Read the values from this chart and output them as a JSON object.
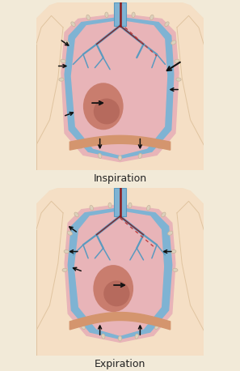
{
  "title_top": "Inspiration",
  "title_bottom": "Expiration",
  "skin_color": "#f5dfc5",
  "skin_dark": "#e0c4a0",
  "lung_pink": "#e8b4b8",
  "pleura_blue": "#7fb3d3",
  "pleura_blue_dark": "#5a9abf",
  "heart_color": "#c97d6e",
  "heart_dark": "#a85c50",
  "blood_red": "#8b1a1a",
  "rib_color": "#ddd0bc",
  "rib_outline": "#c8b49a",
  "mediastinum_dashed": "#c04040",
  "arrow_color": "#111111",
  "text_color": "#222222",
  "font_size_label": 9,
  "diaphragm_color": "#d4956e",
  "bg_color": "#f2ead8"
}
